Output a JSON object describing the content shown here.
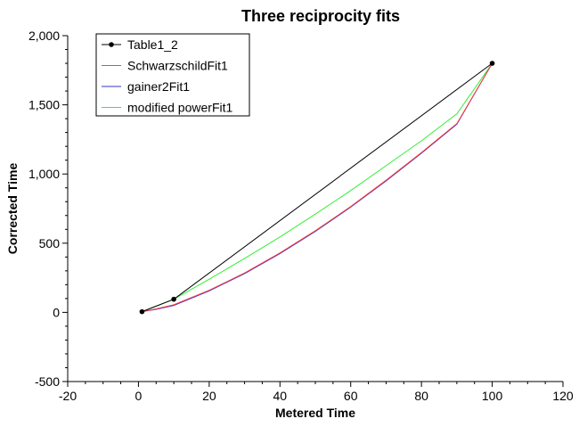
{
  "chart_data": {
    "type": "line",
    "title": "Three reciprocity fits",
    "xlabel": "Metered Time",
    "ylabel": "Corrected Time",
    "xlim": [
      -20,
      120
    ],
    "ylim": [
      -500,
      2000
    ],
    "x_ticks": [
      -20,
      0,
      20,
      40,
      60,
      80,
      100,
      120
    ],
    "x_tick_labels": [
      "-20",
      "0",
      "20",
      "40",
      "60",
      "80",
      "100",
      "120"
    ],
    "y_ticks": [
      -500,
      0,
      500,
      1000,
      1500,
      2000
    ],
    "y_tick_labels": [
      "-500",
      "0",
      "500",
      "1,000",
      "1,500",
      "2,000"
    ],
    "grid": false,
    "legend_position": "top-left",
    "series": [
      {
        "name": "Table1_2",
        "color": "#000000",
        "markers": true,
        "x": [
          1,
          10,
          100
        ],
        "y": [
          5,
          95,
          1800
        ]
      },
      {
        "name": "SchwarzschildFit1",
        "color": "#ff4040",
        "markers": false,
        "x": [
          1,
          5,
          10,
          20,
          30,
          40,
          50,
          60,
          70,
          80,
          90,
          100
        ],
        "y": [
          5,
          25,
          55,
          160,
          285,
          430,
          590,
          765,
          955,
          1155,
          1365,
          1800
        ]
      },
      {
        "name": "gainer2Fit1",
        "color": "#3333cc",
        "markers": false,
        "x": [
          1,
          5,
          10,
          20,
          30,
          40,
          50,
          60,
          70,
          80,
          90,
          100
        ],
        "y": [
          5,
          22,
          50,
          155,
          280,
          425,
          585,
          760,
          950,
          1150,
          1360,
          1800
        ]
      },
      {
        "name": "modified powerFit1",
        "color": "#33ee33",
        "markers": false,
        "x": [
          1,
          5,
          10,
          20,
          30,
          40,
          50,
          60,
          70,
          80,
          90,
          100
        ],
        "y": [
          5,
          45,
          95,
          240,
          390,
          545,
          710,
          880,
          1060,
          1240,
          1435,
          1800
        ]
      }
    ]
  }
}
